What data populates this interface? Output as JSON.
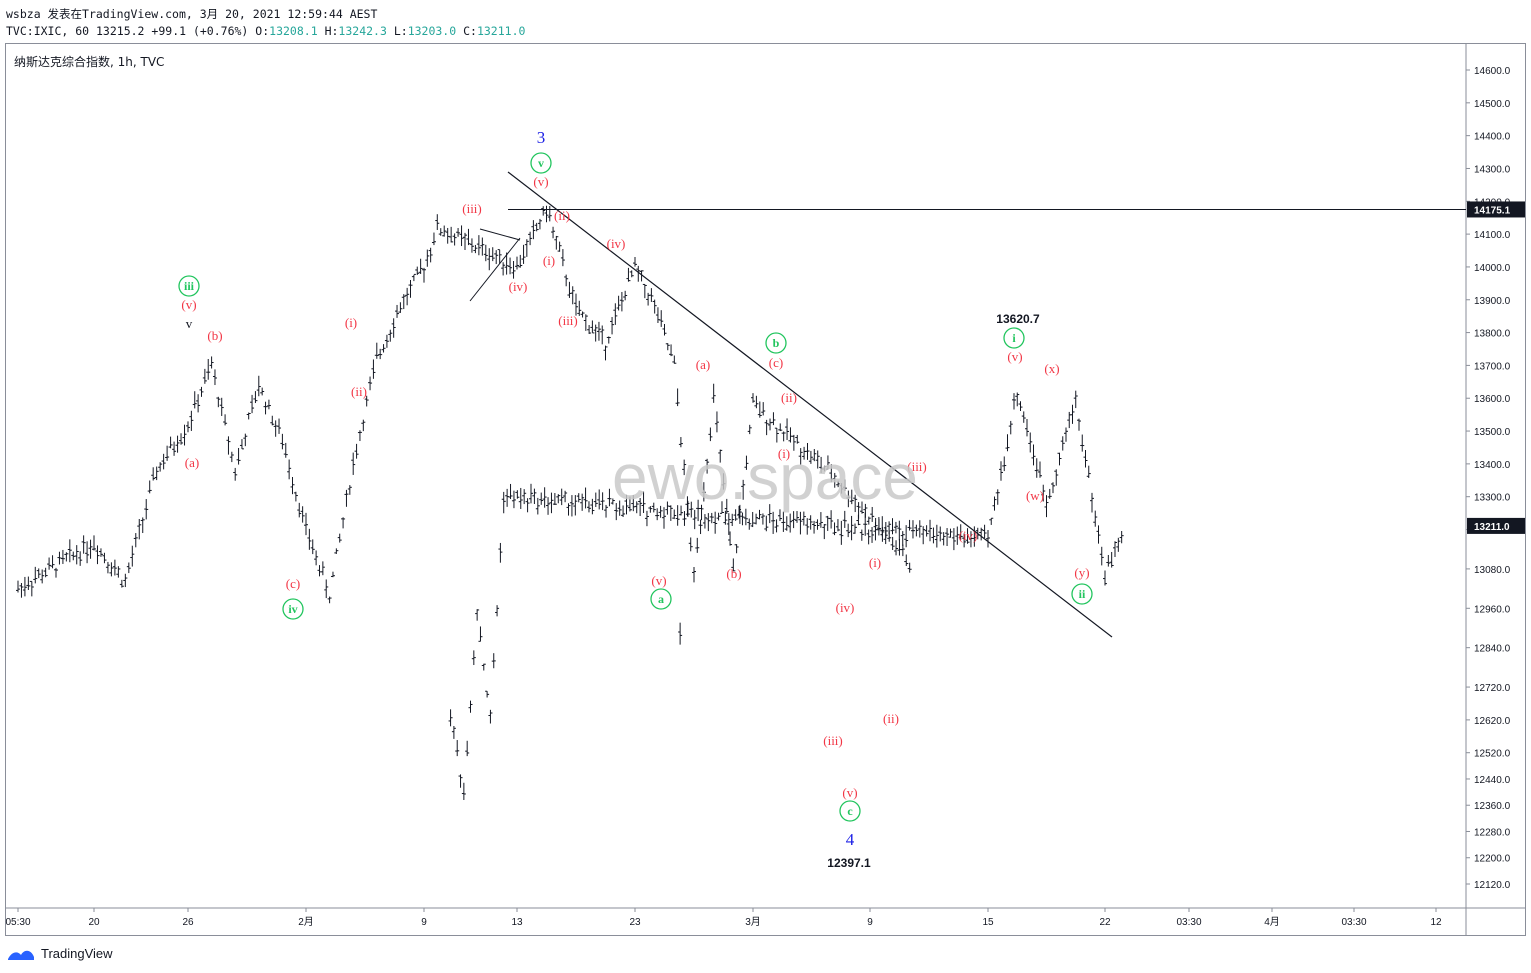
{
  "header": {
    "line1": "wsbza 发表在TradingView.com, 3月 20, 2021 12:59:44 AEST",
    "line2_symbol": "TVC:IXIC, 60 13215.2",
    "line2_change": "+99.1 (+0.76%)",
    "o_label": "O:",
    "o_value": "13208.1",
    "h_label": "H:",
    "h_value": "13242.3",
    "l_label": "L:",
    "l_value": "13203.0",
    "c_label": "C:",
    "c_value": "13211.0"
  },
  "chart_title": "纳斯达克综合指数, 1h, TVC",
  "watermark": "ewo.space",
  "footer": {
    "brand": "TradingView"
  },
  "colors": {
    "candle": "#131722",
    "wave_red": "#f23645",
    "wave_green": "#22c55e",
    "wave_blue": "#1e22e6",
    "axis_text": "#131722",
    "price_tag_bg": "#131722"
  },
  "chart_data": {
    "type": "line",
    "ylim": [
      12080,
      14720
    ],
    "y_ticks": [
      "12120.0",
      "12200.0",
      "12280.0",
      "12360.0",
      "12440.0",
      "12520.0",
      "12620.0",
      "12720.0",
      "12840.0",
      "12960.0",
      "13080.0",
      "13200.0",
      "13300.0",
      "13400.0",
      "13500.0",
      "13600.0",
      "13700.0",
      "13800.0",
      "13900.0",
      "14000.0",
      "14100.0",
      "14200.0",
      "14300.0",
      "14400.0",
      "14500.0",
      "14600.0"
    ],
    "x_ticks": [
      "05:30",
      "20",
      "26",
      "2月",
      "9",
      "13",
      "23",
      "3月",
      "9",
      "15",
      "22",
      "03:30",
      "4月",
      "03:30",
      "12"
    ],
    "price_labels": [
      {
        "value": 14175.1,
        "text": "14175.1"
      },
      {
        "value": 13211.0,
        "text": "13211.0"
      }
    ],
    "hline": 14175.1,
    "series": [
      {
        "values": [
          {
            "x": "05:30",
            "y": 13020
          },
          {
            "x": "20",
            "y": 13160
          },
          {
            "x": "20",
            "y": 13040
          },
          {
            "x": "20",
            "y": 13380
          },
          {
            "x": "26",
            "y": 13520
          },
          {
            "x": "26",
            "y": 13700
          },
          {
            "x": "26",
            "y": 13380
          },
          {
            "x": "26",
            "y": 13640
          },
          {
            "x": "26",
            "y": 13470
          },
          {
            "x": "2月",
            "y": 13200
          },
          {
            "x": "2月",
            "y": 13000
          },
          {
            "x": "2月",
            "y": 13400
          },
          {
            "x": "2月",
            "y": 13720
          },
          {
            "x": "2月",
            "y": 13880
          },
          {
            "x": "9",
            "y": 14000
          },
          {
            "x": "9",
            "y": 14120
          },
          {
            "x": "13",
            "y": 14000
          },
          {
            "x": "13",
            "y": 14178
          },
          {
            "x": "13",
            "y": 13870
          },
          {
            "x": "13",
            "y": 13770
          },
          {
            "x": "23",
            "y": 14000
          },
          {
            "x": "23",
            "y": 13880
          },
          {
            "x": "23",
            "y": 13700
          },
          {
            "x": "23",
            "y": 13050
          },
          {
            "x": "23",
            "y": 13600
          },
          {
            "x": "23",
            "y": 13070
          },
          {
            "x": "3月",
            "y": 13580
          },
          {
            "x": "3月",
            "y": 13370
          },
          {
            "x": "3月",
            "y": 13100
          },
          {
            "x": "9",
            "y": 12640
          },
          {
            "x": "9",
            "y": 12397
          },
          {
            "x": "9",
            "y": 12960
          },
          {
            "x": "9",
            "y": 12620
          },
          {
            "x": "9",
            "y": 13300
          },
          {
            "x": "15",
            "y": 13170
          },
          {
            "x": "15",
            "y": 13620
          },
          {
            "x": "15",
            "y": 13280
          },
          {
            "x": "15",
            "y": 13595
          },
          {
            "x": "22",
            "y": 13060
          },
          {
            "x": "22",
            "y": 13211
          }
        ]
      }
    ],
    "wave_labels": [
      {
        "text": "3",
        "color": "blue",
        "x": "13",
        "y": 14460
      },
      {
        "text": "v",
        "color": "green",
        "circle": true,
        "x": "13",
        "y": 14350
      },
      {
        "text": "(v)",
        "color": "red",
        "x": "13",
        "y": 14250
      },
      {
        "text": "(iii)",
        "color": "red",
        "x": "9",
        "y": 14130
      },
      {
        "text": "(ii)",
        "color": "red",
        "x": "13",
        "y": 14090
      },
      {
        "text": "(i)",
        "color": "red",
        "x": "13",
        "y": 13960
      },
      {
        "text": "(iv)",
        "color": "red",
        "x": "13",
        "y": 13850
      },
      {
        "text": "(iv)",
        "color": "red",
        "x": "23",
        "y": 14000
      },
      {
        "text": "(iii)",
        "color": "red",
        "x": "23",
        "y": 13760
      },
      {
        "text": "iii",
        "color": "green",
        "circle": true,
        "x": "26",
        "y": 13850
      },
      {
        "text": "(v)",
        "color": "red",
        "x": "26",
        "y": 13790
      },
      {
        "text": "v",
        "color": "black",
        "x": "26",
        "y": 13730
      },
      {
        "text": "(b)",
        "color": "red",
        "x": "26",
        "y": 13720
      },
      {
        "text": "(a)",
        "color": "red",
        "x": "26",
        "y": 13320
      },
      {
        "text": "(c)",
        "color": "red",
        "x": "2月",
        "y": 12980
      },
      {
        "text": "iv",
        "color": "green",
        "circle": true,
        "x": "2月",
        "y": 12890
      },
      {
        "text": "(i)",
        "color": "red",
        "x": "2月",
        "y": 13760
      },
      {
        "text": "(ii)",
        "color": "red",
        "x": "2月",
        "y": 13500
      },
      {
        "text": "(v)",
        "color": "red",
        "x": "23",
        "y": 13000
      },
      {
        "text": "a",
        "color": "green",
        "circle": true,
        "x": "23",
        "y": 12920
      },
      {
        "text": "(a)",
        "color": "red",
        "x": "23",
        "y": 13630
      },
      {
        "text": "(b)",
        "color": "red",
        "x": "3月",
        "y": 13020
      },
      {
        "text": "b",
        "color": "green",
        "circle": true,
        "x": "3月",
        "y": 13710
      },
      {
        "text": "(c)",
        "color": "red",
        "x": "3月",
        "y": 13640
      },
      {
        "text": "(ii)",
        "color": "red",
        "x": "3月",
        "y": 13530
      },
      {
        "text": "(i)",
        "color": "red",
        "x": "3月",
        "y": 13360
      },
      {
        "text": "(iv)",
        "color": "red",
        "x": "9",
        "y": 12880
      },
      {
        "text": "(iii)",
        "color": "red",
        "x": "9",
        "y": 12520
      },
      {
        "text": "(v)",
        "color": "red",
        "x": "9",
        "y": 12360
      },
      {
        "text": "c",
        "color": "green",
        "circle": true,
        "x": "9",
        "y": 12280
      },
      {
        "text": "4",
        "color": "blue",
        "x": "9",
        "y": 12230
      },
      {
        "text": "(i)",
        "color": "red",
        "x": "9",
        "y": 13020
      },
      {
        "text": "(ii)",
        "color": "red",
        "x": "9",
        "y": 12600
      },
      {
        "text": "(iii)",
        "color": "red",
        "x": "9",
        "y": 13320
      },
      {
        "text": "(iv)",
        "color": "red",
        "x": "15",
        "y": 13100
      },
      {
        "text": "i",
        "color": "green",
        "circle": true,
        "x": "15",
        "y": 13720
      },
      {
        "text": "(v)",
        "color": "red",
        "x": "15",
        "y": 13650
      },
      {
        "text": "(x)",
        "color": "red",
        "x": "15",
        "y": 13610
      },
      {
        "text": "(w)",
        "color": "red",
        "x": "15",
        "y": 13240
      },
      {
        "text": "(y)",
        "color": "red",
        "x": "22",
        "y": 12990
      },
      {
        "text": "ii",
        "color": "green",
        "circle": true,
        "x": "22",
        "y": 12920
      }
    ],
    "annotations": [
      {
        "text": "13620.7",
        "x": "15",
        "y": 13620.7
      },
      {
        "text": "12397.1",
        "x": "9",
        "y": 12397.1
      }
    ]
  }
}
